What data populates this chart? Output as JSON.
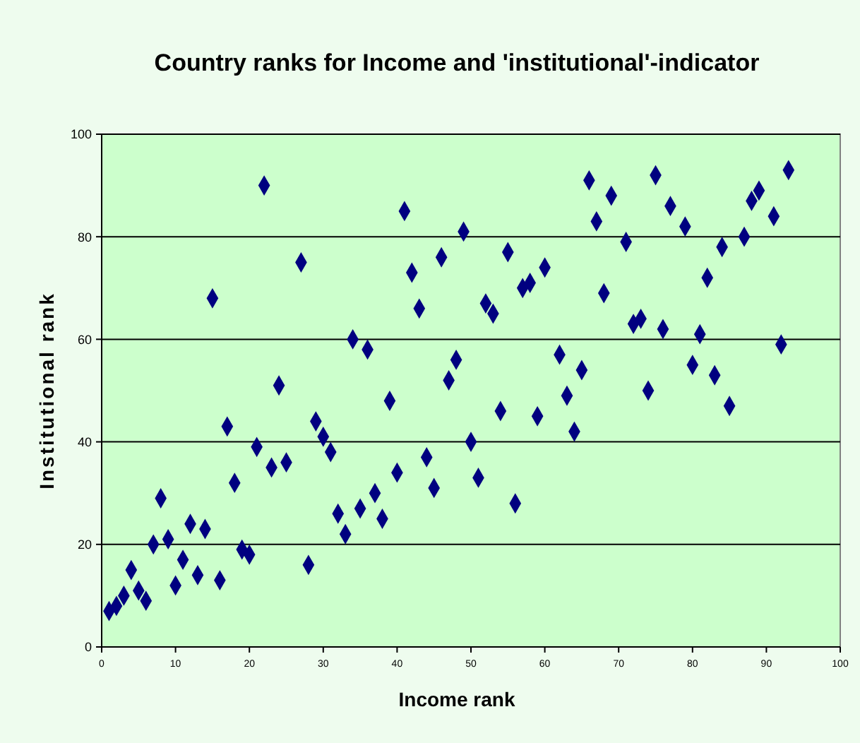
{
  "chart_data": {
    "type": "scatter",
    "title": "Country ranks for Income and 'institutional'-indicator",
    "xlabel": "Income rank",
    "ylabel": "Institutional rank",
    "x": [
      1,
      2,
      3,
      4,
      5,
      6,
      7,
      8,
      9,
      10,
      11,
      12,
      13,
      14,
      15,
      16,
      17,
      18,
      19,
      20,
      21,
      22,
      23,
      24,
      25,
      27,
      28,
      29,
      30,
      31,
      32,
      33,
      34,
      35,
      36,
      37,
      38,
      39,
      40,
      41,
      42,
      43,
      44,
      45,
      46,
      47,
      48,
      49,
      50,
      51,
      52,
      53,
      54,
      55,
      56,
      57,
      58,
      59,
      60,
      62,
      63,
      64,
      65,
      66,
      67,
      68,
      69,
      71,
      72,
      73,
      74,
      75,
      76,
      77,
      79,
      80,
      81,
      82,
      83,
      84,
      85,
      87,
      88,
      89,
      91,
      92,
      93
    ],
    "series": [
      {
        "color": "#000080",
        "values": [
          7,
          8,
          10,
          15,
          11,
          9,
          20,
          29,
          21,
          12,
          17,
          24,
          14,
          23,
          68,
          13,
          43,
          32,
          19,
          18,
          39,
          90,
          35,
          51,
          36,
          75,
          16,
          44,
          41,
          38,
          26,
          22,
          60,
          27,
          58,
          30,
          25,
          48,
          34,
          85,
          73,
          66,
          37,
          31,
          76,
          52,
          56,
          81,
          40,
          33,
          67,
          65,
          46,
          77,
          28,
          70,
          71,
          45,
          74,
          57,
          49,
          42,
          54,
          91,
          83,
          69,
          88,
          79,
          63,
          64,
          50,
          92,
          62,
          86,
          82,
          55,
          61,
          72,
          53,
          78,
          47,
          80,
          87,
          89,
          84,
          59,
          93
        ]
      }
    ],
    "xlim": [
      0,
      100
    ],
    "xticks": [
      0,
      10,
      20,
      30,
      40,
      50,
      60,
      70,
      80,
      90,
      100
    ],
    "ylim": [
      0,
      100
    ],
    "yticks": [
      0,
      20,
      40,
      60,
      80,
      100
    ],
    "grid": "y",
    "marker": "diamond"
  }
}
